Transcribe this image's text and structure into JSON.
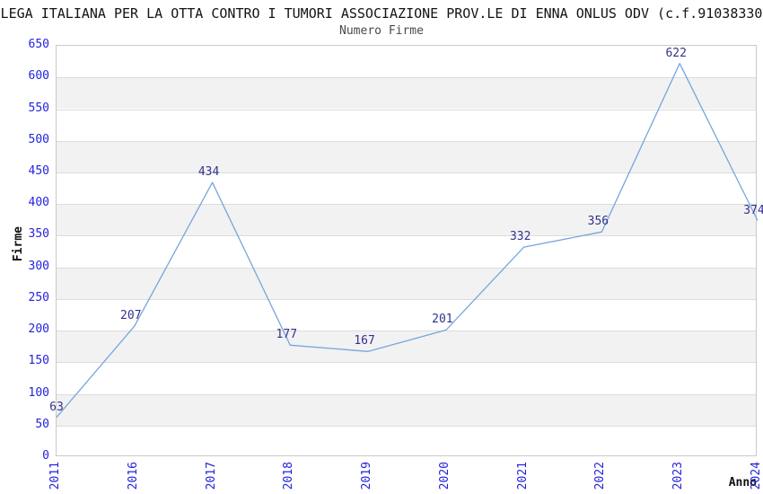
{
  "colors": {
    "line": "#77a5dd",
    "tick_label": "#2323dd",
    "data_label": "#32328f",
    "band_fill": "#f2f2f2",
    "gridline": "#dcdcdc",
    "plot_border": "#c9c9c9",
    "title_text": "#141414",
    "subtitle_text": "#4a4a4a"
  },
  "header": {
    "title": "LEGA ITALIANA PER LA OTTA CONTRO I TUMORI ASSOCIAZIONE PROV.LE DI ENNA ONLUS ODV (c.f.91038330",
    "subtitle": "Numero Firme"
  },
  "chart_data": {
    "type": "line",
    "title": "Numero Firme",
    "categories": [
      "2011",
      "2016",
      "2017",
      "2018",
      "2019",
      "2020",
      "2021",
      "2022",
      "2023",
      "2024"
    ],
    "values": [
      63,
      207,
      434,
      177,
      167,
      201,
      332,
      356,
      622,
      374
    ],
    "xlabel": "Anno",
    "ylabel": "Firme",
    "ylim": [
      0,
      650
    ],
    "ytick_step": 50,
    "grid": "horizontal-bands",
    "legend": "none",
    "data_labels_visible": true,
    "x_tick_rotation_deg": 90
  }
}
